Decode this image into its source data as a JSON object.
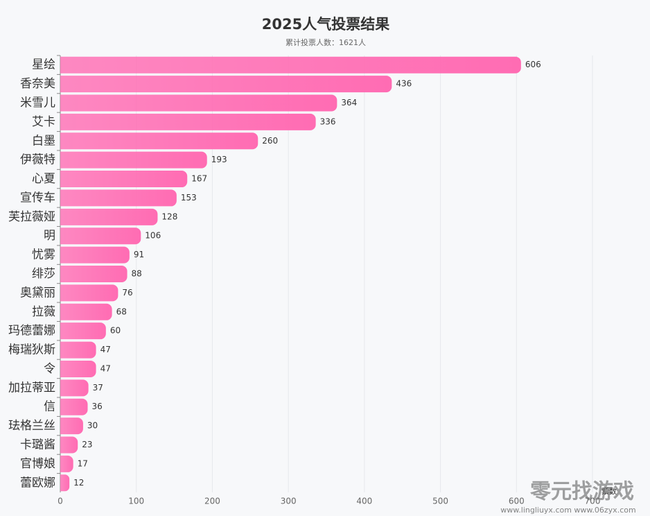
{
  "chart_data": {
    "type": "barh",
    "title": "2025人气投票结果",
    "subtitle": "累计投票人数：1621人",
    "x_label": "票数",
    "categories": [
      "星绘",
      "香奈美",
      "米雪儿",
      "艾卡",
      "白墨",
      "伊薇特",
      "心夏",
      "宣传车",
      "芙拉薇娅",
      "明",
      "忧雾",
      "绯莎",
      "奥黛丽",
      "拉薇",
      "玛德蕾娜",
      "梅瑞狄斯",
      "令",
      "加拉蒂亚",
      "信",
      "珐格兰丝",
      "卡璐酱",
      "官博娘",
      "蕾欧娜"
    ],
    "values": [
      606,
      436,
      364,
      336,
      260,
      193,
      167,
      153,
      128,
      106,
      91,
      88,
      76,
      68,
      60,
      47,
      47,
      37,
      36,
      30,
      23,
      17,
      12
    ],
    "color": "#ff6cb3",
    "xlim": [
      0,
      700
    ],
    "xticks": [
      0,
      100,
      200,
      300,
      400,
      500,
      600,
      700
    ],
    "grid": true
  },
  "watermark": {
    "brand": "零元找游戏",
    "sites": "www.lingliuyx.com  www.06zyx.com"
  }
}
